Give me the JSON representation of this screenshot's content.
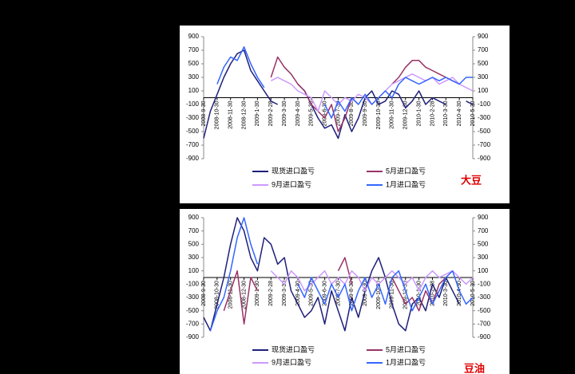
{
  "chart_data": [
    {
      "type": "line",
      "annotation": "大豆",
      "categories": [
        "2008-9-30",
        null,
        "2008-10-30",
        null,
        "2008-11-30",
        null,
        "2008-12-30",
        null,
        "2009-1-30",
        null,
        "2009-2-28",
        null,
        "2009-3-30",
        null,
        "2009-4-30",
        null,
        "2009-5-30",
        null,
        "2009-6-30",
        null,
        "2009-7-30",
        null,
        "2009-8-30",
        null,
        "2009-9-30",
        null,
        "2009-10-30",
        null,
        "2009-11-30",
        null,
        "2009-12-30",
        null,
        "2010-1-30",
        null,
        "2010-2-28",
        null,
        "2010-3-30",
        null,
        "2010-4-30",
        null,
        "2010-5-30"
      ],
      "ylim": [
        -900,
        900
      ],
      "yticks": [
        -900,
        -700,
        -500,
        -300,
        -100,
        100,
        300,
        500,
        700,
        900
      ],
      "series": [
        {
          "name": "现货进口盈亏",
          "color": "#1f1f7a",
          "values": [
            -600,
            -200,
            50,
            300,
            500,
            650,
            700,
            400,
            250,
            100,
            -50,
            -100,
            null,
            null,
            200,
            100,
            -100,
            -300,
            -450,
            -400,
            -600,
            -250,
            -500,
            -300,
            0,
            100,
            -100,
            -50,
            100,
            50,
            -150,
            -50,
            100,
            -100,
            0,
            -50,
            -100,
            null,
            null,
            -50,
            -100
          ]
        },
        {
          "name": "5月进口盈亏",
          "color": "#993366",
          "values": [
            null,
            null,
            null,
            null,
            null,
            null,
            null,
            null,
            null,
            null,
            300,
            600,
            450,
            350,
            200,
            100,
            -100,
            -200,
            -300,
            -100,
            -500,
            -300,
            0,
            -100,
            null,
            null,
            null,
            null,
            200,
            300,
            450,
            550,
            550,
            450,
            400,
            350,
            300,
            250,
            200,
            null,
            null
          ]
        },
        {
          "name": "9月进口盈亏",
          "color": "#cc99ff",
          "values": [
            null,
            null,
            null,
            null,
            null,
            null,
            null,
            null,
            null,
            null,
            250,
            300,
            250,
            200,
            100,
            50,
            0,
            -200,
            100,
            0,
            -100,
            0,
            -50,
            50,
            0,
            -100,
            0,
            100,
            200,
            250,
            300,
            350,
            300,
            250,
            300,
            200,
            250,
            300,
            200,
            150,
            100
          ]
        },
        {
          "name": "1月进口盈亏",
          "color": "#3366ff",
          "values": [
            null,
            null,
            200,
            450,
            600,
            550,
            750,
            500,
            300,
            150,
            null,
            null,
            null,
            null,
            null,
            null,
            null,
            null,
            -100,
            -300,
            -50,
            -200,
            0,
            -100,
            50,
            -100,
            0,
            100,
            0,
            200,
            300,
            250,
            200,
            250,
            300,
            250,
            300,
            250,
            200,
            300,
            300
          ]
        }
      ]
    },
    {
      "type": "line",
      "annotation": "豆油",
      "categories": [
        "2008-9-30",
        null,
        "2008-10-30",
        null,
        "2008-11-30",
        null,
        "2008-12-30",
        null,
        "2009-1-30",
        null,
        "2009-2-28",
        null,
        "2009-3-30",
        null,
        "2009-4-30",
        null,
        "2009-5-30",
        null,
        "2009-6-30",
        null,
        "2009-7-30",
        null,
        "2009-8-30",
        null,
        "2009-9-30",
        null,
        "2009-10-30",
        null,
        "2009-11-30",
        null,
        "2009-12-30",
        null,
        "2010-1-30",
        null,
        "2010-2-28",
        null,
        "2010-3-30",
        null,
        "2010-4-30",
        null,
        "2010-5-30"
      ],
      "ylim": [
        -900,
        900
      ],
      "yticks": [
        -900,
        -700,
        -500,
        -300,
        -100,
        100,
        300,
        500,
        700,
        900
      ],
      "series": [
        {
          "name": "现货进口盈亏",
          "color": "#1f1f7a",
          "values": [
            -600,
            -800,
            -400,
            0,
            500,
            900,
            700,
            300,
            100,
            600,
            500,
            200,
            300,
            -200,
            -400,
            -600,
            -500,
            -300,
            -700,
            -200,
            -500,
            -800,
            -300,
            -600,
            -200,
            100,
            300,
            0,
            -400,
            -700,
            -800,
            -400,
            -300,
            -500,
            -100,
            -300,
            0,
            -200,
            -400,
            null,
            null
          ]
        },
        {
          "name": "5月进口盈亏",
          "color": "#993366",
          "values": [
            null,
            null,
            null,
            -500,
            -200,
            100,
            -700,
            0,
            -200,
            null,
            null,
            null,
            null,
            null,
            null,
            null,
            null,
            null,
            null,
            null,
            100,
            300,
            -100,
            null,
            null,
            null,
            null,
            null,
            0,
            -200,
            -400,
            -300,
            -500,
            -200,
            -400,
            -100,
            0,
            null,
            null,
            null,
            null
          ]
        },
        {
          "name": "9月进口盈亏",
          "color": "#cc99ff",
          "values": [
            null,
            null,
            null,
            null,
            null,
            null,
            null,
            null,
            null,
            null,
            100,
            0,
            -100,
            100,
            0,
            -200,
            -100,
            0,
            100,
            -100,
            0,
            -100,
            100,
            0,
            -200,
            0,
            -100,
            0,
            100,
            0,
            -100,
            0,
            -200,
            0,
            100,
            0,
            50,
            100,
            0,
            -100,
            0
          ]
        },
        {
          "name": "1月进口盈亏",
          "color": "#3366ff",
          "values": [
            null,
            -800,
            -500,
            -300,
            100,
            600,
            900,
            500,
            200,
            null,
            null,
            null,
            null,
            null,
            -100,
            -300,
            0,
            -200,
            -400,
            -100,
            -300,
            -100,
            -500,
            -200,
            0,
            -300,
            -100,
            -400,
            0,
            100,
            -200,
            -500,
            -300,
            -100,
            -400,
            -200,
            0,
            100,
            -200,
            -400,
            -300
          ]
        }
      ]
    }
  ]
}
